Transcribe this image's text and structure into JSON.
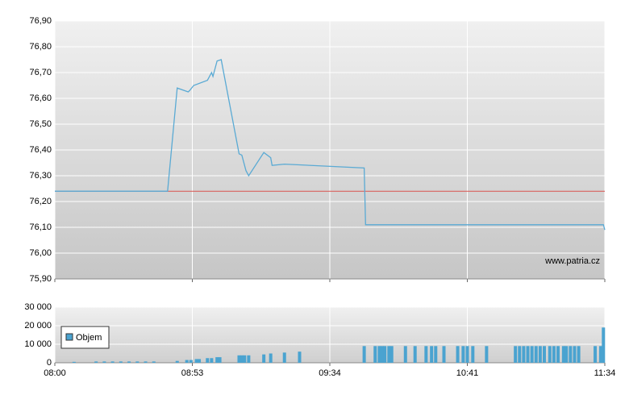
{
  "chart_data": [
    {
      "type": "line",
      "color": "#5aaad4",
      "reference": 76.24,
      "reference_color": "#d9534f",
      "annotation": "www.patria.cz",
      "grid": true,
      "ylim": [
        75.9,
        76.9
      ],
      "yticks": [
        {
          "value": 75.9,
          "label": "75,90"
        },
        {
          "value": 76.0,
          "label": "76,00"
        },
        {
          "value": 76.1,
          "label": "76,10"
        },
        {
          "value": 76.2,
          "label": "76,20"
        },
        {
          "value": 76.3,
          "label": "76,30"
        },
        {
          "value": 76.4,
          "label": "76,40"
        },
        {
          "value": 76.5,
          "label": "76,50"
        },
        {
          "value": 76.6,
          "label": "76,60"
        },
        {
          "value": 76.7,
          "label": "76,70"
        },
        {
          "value": 76.8,
          "label": "76,80"
        },
        {
          "value": 76.9,
          "label": "76,90"
        }
      ],
      "x": [
        0,
        0.82,
        0.89,
        0.97,
        0.98,
        1.01,
        1.11,
        1.14,
        1.15,
        1.18,
        1.21,
        1.34,
        1.36,
        1.39,
        1.41,
        1.52,
        1.57,
        1.58,
        1.67,
        2.25,
        2.26,
        3.99,
        4.0
      ],
      "values": [
        76.24,
        76.24,
        76.64,
        76.625,
        76.63,
        76.65,
        76.67,
        76.7,
        76.685,
        76.745,
        76.75,
        76.385,
        76.38,
        76.32,
        76.3,
        76.39,
        76.37,
        76.34,
        76.345,
        76.33,
        76.11,
        76.11,
        76.09
      ]
    },
    {
      "type": "bar",
      "grid": true,
      "legend": "upper-left",
      "xlim": [
        0,
        4
      ],
      "xticks": [
        {
          "value": 0,
          "label": "08:00"
        },
        {
          "value": 1,
          "label": "08:53"
        },
        {
          "value": 2,
          "label": "09:34"
        },
        {
          "value": 3,
          "label": "10:41"
        },
        {
          "value": 4,
          "label": "11:34"
        }
      ],
      "ylim": [
        0,
        30000
      ],
      "yticks": [
        0,
        {
          "value": 10000,
          "label": "10 000"
        },
        {
          "value": 20000,
          "label": "20 000"
        },
        {
          "value": 30000,
          "label": "30 000"
        }
      ],
      "x": [
        0.14,
        0.3,
        0.36,
        0.42,
        0.48,
        0.54,
        0.6,
        0.66,
        0.72,
        0.89,
        0.96,
        0.99,
        1.03,
        1.05,
        1.11,
        1.14,
        1.18,
        1.2,
        1.34,
        1.36,
        1.38,
        1.41,
        1.52,
        1.57,
        1.67,
        1.78,
        2.25,
        2.33,
        2.36,
        2.38,
        2.4,
        2.43,
        2.45,
        2.55,
        2.62,
        2.7,
        2.74,
        2.77,
        2.83,
        2.93,
        2.97,
        3.0,
        3.04,
        3.14,
        3.35,
        3.38,
        3.41,
        3.44,
        3.47,
        3.5,
        3.53,
        3.56,
        3.6,
        3.63,
        3.66,
        3.7,
        3.72,
        3.75,
        3.78,
        3.81,
        3.93,
        3.97,
        3.99
      ],
      "series": [
        {
          "name": "Objem",
          "color": "#4aa3d0",
          "values": [
            500,
            700,
            700,
            700,
            700,
            700,
            700,
            700,
            700,
            1000,
            1500,
            1500,
            2000,
            2000,
            2500,
            2500,
            3000,
            3000,
            4000,
            4000,
            4000,
            4000,
            4500,
            5000,
            5500,
            6000,
            9000,
            9000,
            9000,
            9000,
            9000,
            9000,
            9000,
            9000,
            9000,
            9000,
            9000,
            9000,
            9000,
            9000,
            9000,
            9000,
            9000,
            9000,
            9000,
            9000,
            9000,
            9000,
            9000,
            9000,
            9000,
            9000,
            9000,
            9000,
            9000,
            9000,
            9000,
            9000,
            9000,
            9000,
            9000,
            9000,
            19000
          ]
        }
      ]
    }
  ]
}
